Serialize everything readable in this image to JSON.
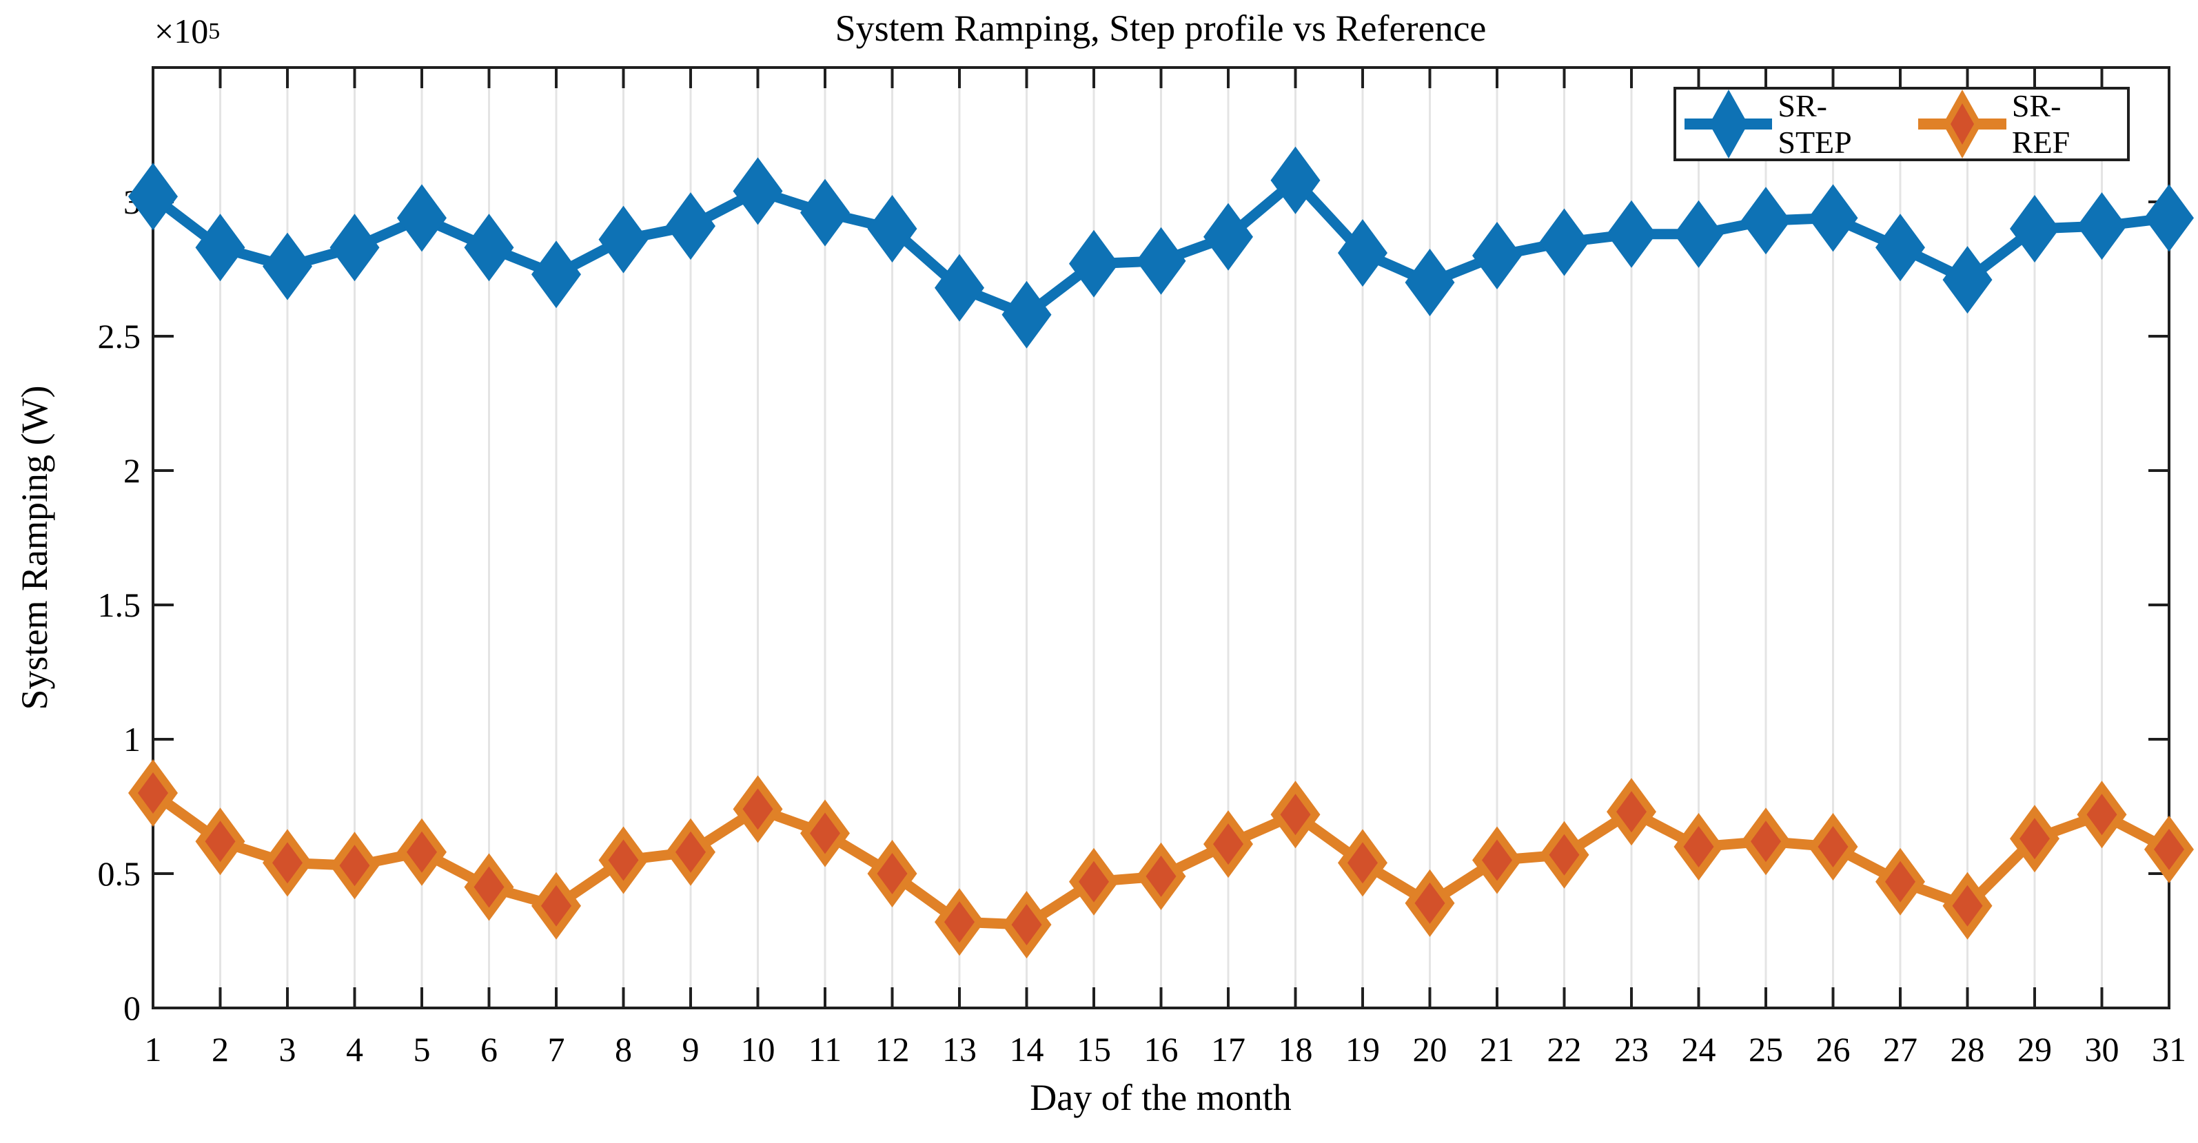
{
  "chart_data": {
    "type": "line",
    "title": "System Ramping, Step profile vs Reference",
    "xlabel": "Day of the month",
    "ylabel": "System Ramping (W)",
    "y_multiplier_base": "×10",
    "y_multiplier_exp": "5",
    "unit_scale": 100000,
    "xlim": [
      1,
      31
    ],
    "ylim_x1e5": [
      0,
      3.5
    ],
    "grid": "vertical-only",
    "legend_position": "top-right-inside",
    "x": [
      1,
      2,
      3,
      4,
      5,
      6,
      7,
      8,
      9,
      10,
      11,
      12,
      13,
      14,
      15,
      16,
      17,
      18,
      19,
      20,
      21,
      22,
      23,
      24,
      25,
      26,
      27,
      28,
      29,
      30,
      31
    ],
    "x_tick_labels": [
      "1",
      "2",
      "3",
      "4",
      "5",
      "6",
      "7",
      "8",
      "9",
      "10",
      "11",
      "12",
      "13",
      "14",
      "15",
      "16",
      "17",
      "18",
      "19",
      "20",
      "21",
      "22",
      "23",
      "24",
      "25",
      "26",
      "27",
      "28",
      "29",
      "30",
      "31"
    ],
    "y_ticks_x1e5": [
      0,
      0.5,
      1,
      1.5,
      2,
      2.5,
      3
    ],
    "y_tick_labels": [
      "0",
      "0.5",
      "1",
      "1.5",
      "2",
      "2.5",
      "3"
    ],
    "series": [
      {
        "name": "SR-STEP",
        "marker": "diamond",
        "line_color": "#0e72b5",
        "marker_edge_color": "#0e72b5",
        "marker_face_color": "#0e72b5",
        "values_x1e5": [
          3.02,
          2.83,
          2.76,
          2.83,
          2.94,
          2.83,
          2.73,
          2.86,
          2.91,
          3.04,
          2.96,
          2.9,
          2.68,
          2.58,
          2.77,
          2.78,
          2.87,
          3.08,
          2.81,
          2.7,
          2.8,
          2.85,
          2.88,
          2.88,
          2.93,
          2.94,
          2.83,
          2.71,
          2.9,
          2.91,
          2.94
        ]
      },
      {
        "name": "SR-REF",
        "marker": "diamond",
        "line_color": "#e08127",
        "marker_edge_color": "#e08127",
        "marker_face_color": "#d3512a",
        "values_x1e5": [
          0.8,
          0.62,
          0.54,
          0.53,
          0.58,
          0.45,
          0.38,
          0.55,
          0.58,
          0.74,
          0.65,
          0.5,
          0.32,
          0.31,
          0.47,
          0.49,
          0.61,
          0.72,
          0.54,
          0.39,
          0.55,
          0.57,
          0.73,
          0.6,
          0.62,
          0.6,
          0.47,
          0.38,
          0.63,
          0.72,
          0.59
        ]
      }
    ],
    "colors": {
      "axis": "#1f1f1f",
      "grid": "#e4e4e4",
      "text": "#000000",
      "background": "#ffffff"
    }
  }
}
